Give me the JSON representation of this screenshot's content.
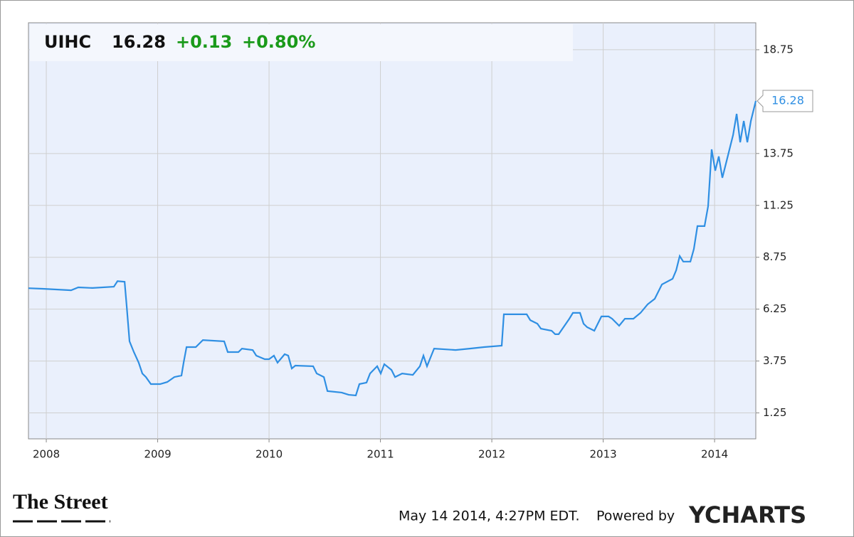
{
  "chart_data": {
    "type": "line",
    "ticker": "UIHC",
    "price": "16.28",
    "change": "+0.13",
    "change_pct": "+0.80%",
    "x": [
      2007.84,
      2007.968,
      2008.223,
      2008.287,
      2008.415,
      2008.607,
      2008.639,
      2008.703,
      2008.722,
      2008.747,
      2008.786,
      2008.83,
      2008.862,
      2008.894,
      2008.939,
      2009.022,
      2009.086,
      2009.15,
      2009.214,
      2009.233,
      2009.259,
      2009.342,
      2009.406,
      2009.597,
      2009.629,
      2009.725,
      2009.757,
      2009.853,
      2009.885,
      2009.961,
      2010.0,
      2010.044,
      2010.076,
      2010.14,
      2010.172,
      2010.204,
      2010.236,
      2010.396,
      2010.428,
      2010.492,
      2010.524,
      2010.652,
      2010.715,
      2010.779,
      2010.811,
      2010.875,
      2010.907,
      2010.971,
      2011.003,
      2011.035,
      2011.099,
      2011.131,
      2011.195,
      2011.291,
      2011.354,
      2011.386,
      2011.418,
      2011.482,
      2011.674,
      2011.802,
      2011.929,
      2012.089,
      2012.108,
      2012.313,
      2012.345,
      2012.409,
      2012.441,
      2012.537,
      2012.569,
      2012.6,
      2012.696,
      2012.728,
      2012.792,
      2012.824,
      2012.856,
      2012.92,
      2012.984,
      2013.048,
      2013.08,
      2013.143,
      2013.195,
      2013.271,
      2013.335,
      2013.399,
      2013.463,
      2013.527,
      2013.623,
      2013.655,
      2013.687,
      2013.719,
      2013.783,
      2013.814,
      2013.846,
      2013.91,
      2013.942,
      2013.974,
      2014.006,
      2014.038,
      2014.07,
      2014.102,
      2014.166,
      2014.198,
      2014.23,
      2014.262,
      2014.294,
      2014.326,
      2014.37
    ],
    "series": [
      {
        "name": "UIHC",
        "color": "#2f8fe3",
        "values": [
          7.26,
          7.23,
          7.16,
          7.3,
          7.27,
          7.33,
          7.6,
          7.57,
          6.4,
          4.7,
          4.18,
          3.67,
          3.15,
          2.98,
          2.64,
          2.64,
          2.74,
          2.98,
          3.05,
          3.67,
          4.42,
          4.42,
          4.76,
          4.7,
          4.18,
          4.18,
          4.35,
          4.28,
          4.01,
          3.84,
          3.84,
          4.01,
          3.67,
          4.08,
          4.01,
          3.39,
          3.53,
          3.5,
          3.15,
          2.98,
          2.3,
          2.23,
          2.12,
          2.09,
          2.64,
          2.71,
          3.15,
          3.5,
          3.15,
          3.6,
          3.32,
          2.98,
          3.15,
          3.08,
          3.5,
          4.01,
          3.5,
          4.35,
          4.28,
          4.35,
          4.42,
          4.49,
          6.0,
          6.0,
          5.72,
          5.55,
          5.31,
          5.21,
          5.04,
          5.04,
          5.79,
          6.07,
          6.07,
          5.55,
          5.38,
          5.21,
          5.9,
          5.9,
          5.79,
          5.45,
          5.79,
          5.79,
          6.07,
          6.48,
          6.75,
          7.44,
          7.71,
          8.12,
          8.81,
          8.54,
          8.54,
          9.15,
          10.25,
          10.25,
          11.21,
          13.95,
          12.92,
          13.61,
          12.58,
          13.27,
          14.64,
          15.66,
          14.29,
          15.32,
          14.29,
          15.32,
          16.28
        ]
      }
    ],
    "xlim": [
      2007.84,
      2014.37
    ],
    "xticks": [
      2008,
      2009,
      2010,
      2011,
      2012,
      2013,
      2014
    ],
    "ylim": [
      0,
      20.05
    ],
    "yticks": [
      1.25,
      3.75,
      6.25,
      8.75,
      11.25,
      13.75,
      18.75
    ],
    "grid": true
  },
  "footer": {
    "source": "The Street",
    "timestamp": "May 14 2014, 4:27PM EDT.",
    "powered_by": "Powered by",
    "brand": "YCHARTS"
  }
}
